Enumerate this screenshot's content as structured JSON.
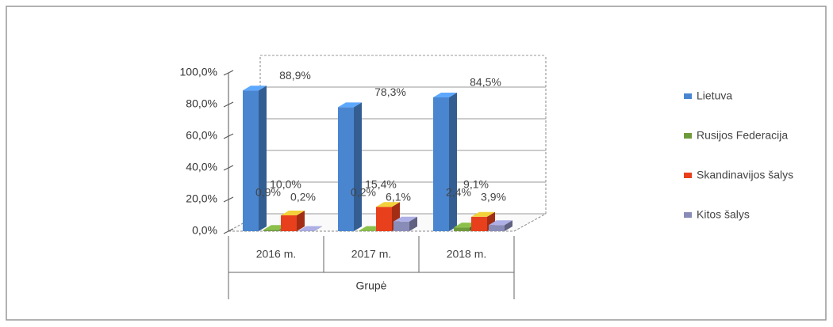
{
  "chart_data": {
    "type": "bar3d",
    "x_label": "Grupė",
    "categories": [
      "2016 m.",
      "2017 m.",
      "2018 m."
    ],
    "series": [
      {
        "name": "Lietuva",
        "color": "#4a86d0",
        "values": [
          88.9,
          78.3,
          84.5
        ],
        "value_labels": [
          "88,9%",
          "78,3%",
          "84,5%"
        ]
      },
      {
        "name": "Rusijos Federacija",
        "color": "#6f9a3c",
        "values": [
          0.9,
          0.2,
          2.4
        ],
        "value_labels": [
          "0,9%",
          "0,2%",
          "2,4%"
        ]
      },
      {
        "name": "Skandinavijos šalys",
        "color": "#e8401c",
        "values": [
          10.0,
          15.4,
          9.1
        ],
        "value_labels": [
          "10,0%",
          "15,4%",
          "9,1%"
        ]
      },
      {
        "name": "Kitos šalys",
        "color": "#8a8cb8",
        "values": [
          0.2,
          6.1,
          3.9
        ],
        "value_labels": [
          "0,2%",
          "6,1%",
          "3,9%"
        ]
      }
    ],
    "ylim": [
      0,
      100
    ],
    "yticks": [
      {
        "value": 0,
        "label": "0,0%"
      },
      {
        "value": 20,
        "label": "20,0%"
      },
      {
        "value": 40,
        "label": "40,0%"
      },
      {
        "value": 60,
        "label": "60,0%"
      },
      {
        "value": 80,
        "label": "80,0%"
      },
      {
        "value": 100,
        "label": "100,0%"
      }
    ],
    "grid": true,
    "legend": "right"
  }
}
